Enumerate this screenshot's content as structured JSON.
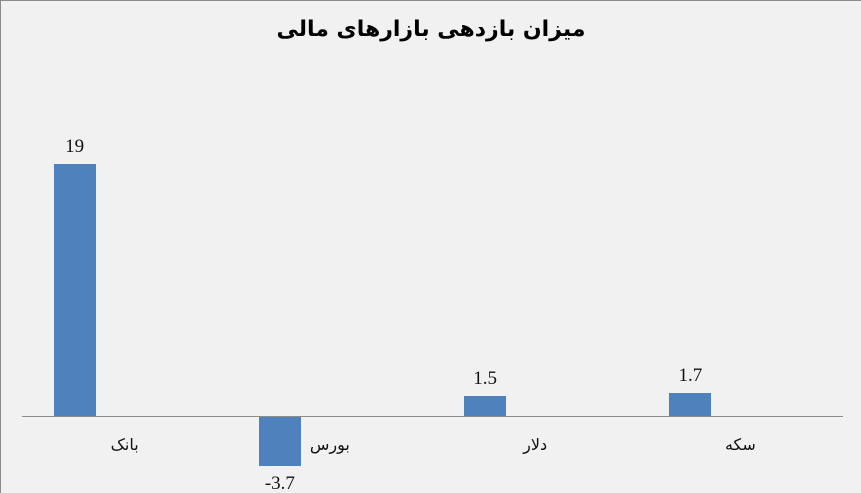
{
  "chart_data": {
    "type": "bar",
    "title": "میزان بازدهی بازارهای مالی",
    "categories": [
      "بانک",
      "بورس",
      "دلار",
      "سکه"
    ],
    "values": [
      19,
      -3.7,
      1.5,
      1.7
    ],
    "data_labels": [
      "19",
      "-3.7",
      "1.5",
      "1.7"
    ],
    "xlabel": "",
    "ylabel": "",
    "grid": false,
    "legend": false,
    "direction": "rtl",
    "bar_color": "#4F81BD",
    "axis_color": "#8C8C8C",
    "background_color": "#F1F1F1",
    "title_color": "#000000"
  }
}
